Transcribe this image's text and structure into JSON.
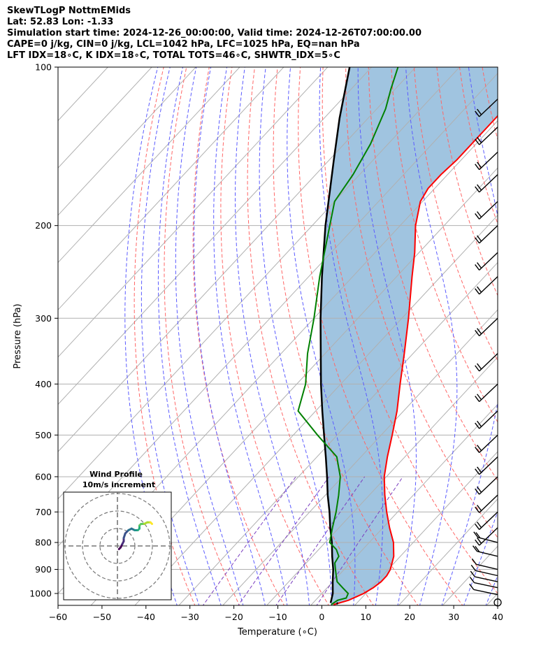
{
  "header": {
    "line1": "SkewTLogP NottmEMids",
    "line2": "Lat: 52.83   Lon: -1.33",
    "line3": "Simulation start time: 2024-12-26_00:00:00, Valid time: 2024-12-26T07:00:00.00",
    "line4": "CAPE=0 j/kg, CIN=0 j/kg, LCL=1042 hPa, LFC=1025 hPa, EQ=nan hPa",
    "line5": "LFT IDX=18∘C, K IDX=18∘C, TOTAL TOTS=46∘C, SHWTR_IDX=5∘C"
  },
  "chart_data": {
    "type": "line",
    "subtype": "skew-T log-P diagram",
    "xlabel": "Temperature (∘C)",
    "ylabel": "Pressure (hPa)",
    "xlim": [
      -60,
      40
    ],
    "ylim": [
      1050,
      100
    ],
    "y_scale": "log",
    "x_ticks": [
      "−60",
      "−50",
      "−40",
      "−30",
      "−20",
      "−10",
      "0",
      "10",
      "20",
      "30",
      "40"
    ],
    "y_ticks": [
      "100",
      "200",
      "300",
      "400",
      "500",
      "600",
      "700",
      "800",
      "900",
      "1000"
    ],
    "grid": true,
    "colors": {
      "temperature": "#ff0000",
      "dewpoint": "#008000",
      "parcel": "#000000",
      "shading": "#a0c4e0",
      "dry_adiabats": "#ff6666",
      "moist_adiabats": "#5b5bff",
      "mixing_ratio": "#7b3fbf"
    },
    "temperature": [
      {
        "p": 1050,
        "t": 5
      },
      {
        "p": 1030,
        "t": 7.5
      },
      {
        "p": 1000,
        "t": 9.5
      },
      {
        "p": 975,
        "t": 10.5
      },
      {
        "p": 950,
        "t": 11
      },
      {
        "p": 925,
        "t": 11
      },
      {
        "p": 900,
        "t": 10.5
      },
      {
        "p": 850,
        "t": 8.5
      },
      {
        "p": 800,
        "t": 5.5
      },
      {
        "p": 750,
        "t": 1.5
      },
      {
        "p": 700,
        "t": -2.5
      },
      {
        "p": 650,
        "t": -6.5
      },
      {
        "p": 600,
        "t": -10.5
      },
      {
        "p": 550,
        "t": -14
      },
      {
        "p": 500,
        "t": -17.5
      },
      {
        "p": 450,
        "t": -21.5
      },
      {
        "p": 400,
        "t": -26.5
      },
      {
        "p": 350,
        "t": -32
      },
      {
        "p": 300,
        "t": -38.5
      },
      {
        "p": 250,
        "t": -46.5
      },
      {
        "p": 225,
        "t": -51
      },
      {
        "p": 200,
        "t": -56.5
      },
      {
        "p": 180,
        "t": -60.5
      },
      {
        "p": 170,
        "t": -61.5
      },
      {
        "p": 160,
        "t": -61.5
      },
      {
        "p": 150,
        "t": -61
      },
      {
        "p": 125,
        "t": -61
      },
      {
        "p": 110,
        "t": -61
      },
      {
        "p": 100,
        "t": -61
      }
    ],
    "dewpoint": [
      {
        "p": 1050,
        "t": 4.5
      },
      {
        "p": 1030,
        "t": 5
      },
      {
        "p": 1020,
        "t": 6.5
      },
      {
        "p": 1000,
        "t": 6
      },
      {
        "p": 975,
        "t": 3.5
      },
      {
        "p": 950,
        "t": 1
      },
      {
        "p": 925,
        "t": -0.5
      },
      {
        "p": 900,
        "t": -2
      },
      {
        "p": 875,
        "t": -3.5
      },
      {
        "p": 850,
        "t": -4
      },
      {
        "p": 825,
        "t": -6
      },
      {
        "p": 800,
        "t": -9
      },
      {
        "p": 750,
        "t": -11.5
      },
      {
        "p": 700,
        "t": -14
      },
      {
        "p": 650,
        "t": -17
      },
      {
        "p": 600,
        "t": -20.5
      },
      {
        "p": 550,
        "t": -25.5
      },
      {
        "p": 500,
        "t": -34.5
      },
      {
        "p": 450,
        "t": -44
      },
      {
        "p": 400,
        "t": -48
      },
      {
        "p": 350,
        "t": -54
      },
      {
        "p": 300,
        "t": -60
      },
      {
        "p": 250,
        "t": -67.5
      },
      {
        "p": 200,
        "t": -76
      },
      {
        "p": 180,
        "t": -80
      },
      {
        "p": 160,
        "t": -81.5
      },
      {
        "p": 140,
        "t": -84
      },
      {
        "p": 120,
        "t": -88
      },
      {
        "p": 110,
        "t": -91
      },
      {
        "p": 100,
        "t": -94
      }
    ],
    "parcel_profile": [
      {
        "p": 1042,
        "t": 4
      },
      {
        "p": 1000,
        "t": 2.5
      },
      {
        "p": 950,
        "t": 0
      },
      {
        "p": 900,
        "t": -2.5
      },
      {
        "p": 850,
        "t": -5.5
      },
      {
        "p": 800,
        "t": -8.5
      },
      {
        "p": 750,
        "t": -12
      },
      {
        "p": 700,
        "t": -15.5
      },
      {
        "p": 650,
        "t": -19.5
      },
      {
        "p": 600,
        "t": -23.5
      },
      {
        "p": 550,
        "t": -28
      },
      {
        "p": 500,
        "t": -33
      },
      {
        "p": 450,
        "t": -38.5
      },
      {
        "p": 400,
        "t": -44.5
      },
      {
        "p": 350,
        "t": -51
      },
      {
        "p": 300,
        "t": -58.5
      },
      {
        "p": 250,
        "t": -67
      },
      {
        "p": 200,
        "t": -77
      },
      {
        "p": 150,
        "t": -89
      },
      {
        "p": 125,
        "t": -96.5
      },
      {
        "p": 100,
        "t": -105
      }
    ],
    "wind_barbs_pressure_hpa": [
      1040,
      1005,
      975,
      950,
      925,
      900,
      850,
      800,
      750,
      700,
      650,
      600,
      550,
      500,
      450,
      400,
      350,
      300,
      250,
      225,
      200,
      180,
      160,
      145,
      130,
      115
    ],
    "hodograph": {
      "title": "Wind Profile",
      "subtitle": "10m/s increment",
      "colormap": "viridis",
      "points_uv": [
        [
          1,
          -2
        ],
        [
          2,
          -1
        ],
        [
          3,
          1
        ],
        [
          4,
          3
        ],
        [
          4,
          5
        ],
        [
          5,
          8
        ],
        [
          7,
          10
        ],
        [
          9,
          11
        ],
        [
          11,
          10
        ],
        [
          13,
          10
        ],
        [
          14,
          11
        ],
        [
          14,
          13
        ],
        [
          15,
          14
        ],
        [
          17,
          14
        ],
        [
          19,
          15
        ],
        [
          21,
          15
        ],
        [
          22,
          14
        ]
      ]
    }
  }
}
